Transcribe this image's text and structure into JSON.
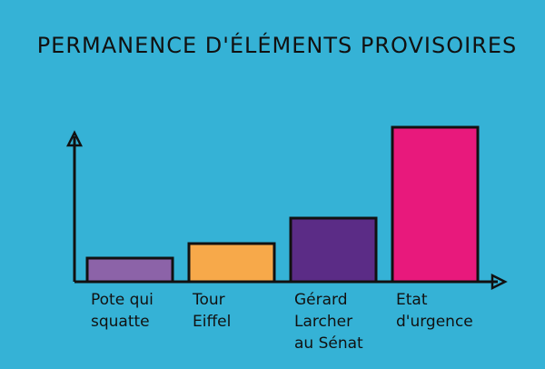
{
  "chart_data": {
    "type": "bar",
    "title": "PERMANENCE D'ÉLÉMENTS PROVISOIRES",
    "categories": [
      "Pote qui\nsquatte",
      "Tour\nEiffel",
      "Gérard\nLarcher\nau Sénat",
      "Etat\nd'urgence"
    ],
    "values": [
      26,
      42,
      70,
      170
    ],
    "colors": [
      "#8c63a8",
      "#f7a94a",
      "#5b2c86",
      "#e8197c"
    ],
    "ylim": [
      0,
      170
    ]
  }
}
